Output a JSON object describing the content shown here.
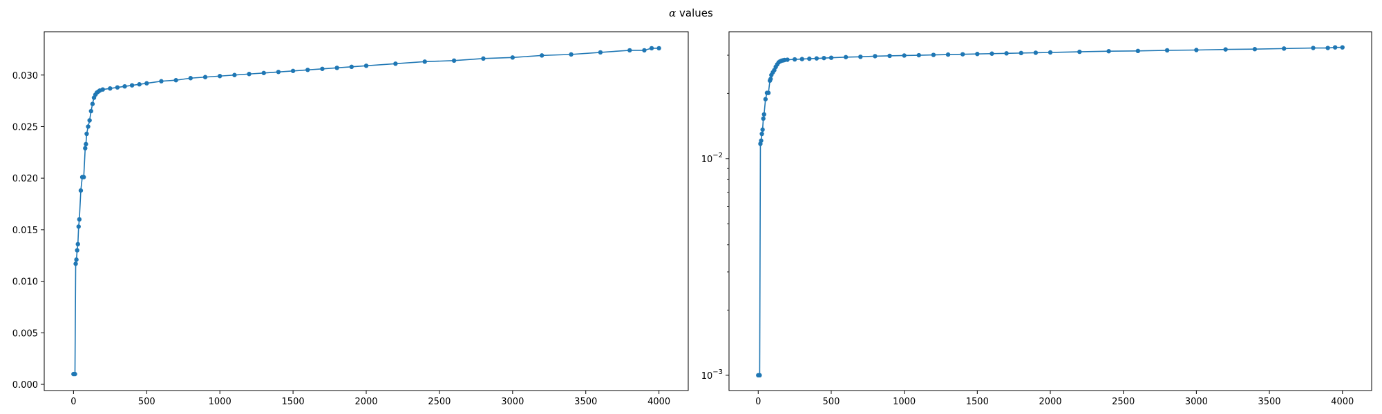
{
  "figure": {
    "title_symbol": "α",
    "title_text": " values"
  },
  "chart_data": [
    {
      "type": "line",
      "title": "",
      "xlabel": "",
      "ylabel": "",
      "yscale": "linear",
      "xlim": [
        -200,
        4200
      ],
      "ylim": [
        -0.0006,
        0.0342
      ],
      "xticks": [
        0,
        500,
        1000,
        1500,
        2000,
        2500,
        3000,
        3500,
        4000
      ],
      "xtick_labels": [
        "0",
        "500",
        "1000",
        "1500",
        "2000",
        "2500",
        "3000",
        "3500",
        "4000"
      ],
      "yticks": [
        0,
        0.005,
        0.01,
        0.015,
        0.02,
        0.025,
        0.03
      ],
      "ytick_labels": [
        "0.000",
        "0.005",
        "0.010",
        "0.015",
        "0.020",
        "0.025",
        "0.030"
      ],
      "grid": false,
      "legend": "none",
      "color": "#1f77b4",
      "marker": "circle",
      "series": [
        {
          "x": [
            0,
            10,
            15,
            20,
            25,
            30,
            35,
            40,
            50,
            60,
            70,
            80,
            85,
            90,
            100,
            110,
            120,
            130,
            140,
            150,
            160,
            170,
            180,
            200,
            250,
            300,
            350,
            400,
            450,
            500,
            600,
            700,
            800,
            900,
            1000,
            1100,
            1200,
            1300,
            1400,
            1500,
            1600,
            1700,
            1800,
            1900,
            2000,
            2200,
            2400,
            2600,
            2800,
            3000,
            3200,
            3400,
            3600,
            3800,
            3900,
            3950,
            4000
          ],
          "y": [
            0.001,
            0.001,
            0.0117,
            0.0121,
            0.013,
            0.0136,
            0.0153,
            0.016,
            0.0188,
            0.0201,
            0.0201,
            0.0229,
            0.0233,
            0.0243,
            0.025,
            0.0256,
            0.0265,
            0.0272,
            0.0278,
            0.0281,
            0.0283,
            0.0284,
            0.0285,
            0.0286,
            0.0287,
            0.0288,
            0.0289,
            0.029,
            0.0291,
            0.0292,
            0.0294,
            0.0295,
            0.0297,
            0.0298,
            0.0299,
            0.03,
            0.0301,
            0.0302,
            0.0303,
            0.0304,
            0.0305,
            0.0306,
            0.0307,
            0.0308,
            0.0309,
            0.0311,
            0.0313,
            0.0314,
            0.0316,
            0.0317,
            0.0319,
            0.032,
            0.0322,
            0.0324,
            0.0324,
            0.0326,
            0.0326
          ]
        }
      ]
    },
    {
      "type": "line",
      "title": "",
      "xlabel": "",
      "ylabel": "",
      "yscale": "log",
      "xlim": [
        -200,
        4200
      ],
      "ylim": [
        0.00085,
        0.0385
      ],
      "xticks": [
        0,
        500,
        1000,
        1500,
        2000,
        2500,
        3000,
        3500,
        4000
      ],
      "xtick_labels": [
        "0",
        "500",
        "1000",
        "1500",
        "2000",
        "2500",
        "3000",
        "3500",
        "4000"
      ],
      "yticks": [
        0.001,
        0.01
      ],
      "ytick_labels": [
        {
          "base": "10",
          "exp": "−3"
        },
        {
          "base": "10",
          "exp": "−2"
        }
      ],
      "minor_yticks": [
        0.002,
        0.003,
        0.004,
        0.005,
        0.006,
        0.007,
        0.008,
        0.009,
        0.02,
        0.03
      ],
      "grid": false,
      "legend": "none",
      "color": "#1f77b4",
      "marker": "circle",
      "series": [
        {
          "x": [
            0,
            10,
            15,
            20,
            25,
            30,
            35,
            40,
            50,
            60,
            70,
            80,
            85,
            90,
            100,
            110,
            120,
            130,
            140,
            150,
            160,
            170,
            180,
            200,
            250,
            300,
            350,
            400,
            450,
            500,
            600,
            700,
            800,
            900,
            1000,
            1100,
            1200,
            1300,
            1400,
            1500,
            1600,
            1700,
            1800,
            1900,
            2000,
            2200,
            2400,
            2600,
            2800,
            3000,
            3200,
            3400,
            3600,
            3800,
            3900,
            3950,
            4000
          ],
          "y": [
            0.001,
            0.001,
            0.0117,
            0.0121,
            0.013,
            0.0136,
            0.0153,
            0.016,
            0.0188,
            0.0201,
            0.0201,
            0.0229,
            0.0233,
            0.0243,
            0.025,
            0.0256,
            0.0265,
            0.0272,
            0.0278,
            0.0281,
            0.0283,
            0.0284,
            0.0285,
            0.0286,
            0.0287,
            0.0288,
            0.0289,
            0.029,
            0.0291,
            0.0292,
            0.0294,
            0.0295,
            0.0297,
            0.0298,
            0.0299,
            0.03,
            0.0301,
            0.0302,
            0.0303,
            0.0304,
            0.0305,
            0.0306,
            0.0307,
            0.0308,
            0.0309,
            0.0311,
            0.0313,
            0.0314,
            0.0316,
            0.0317,
            0.0319,
            0.032,
            0.0322,
            0.0324,
            0.0324,
            0.0326,
            0.0326
          ]
        }
      ]
    }
  ]
}
